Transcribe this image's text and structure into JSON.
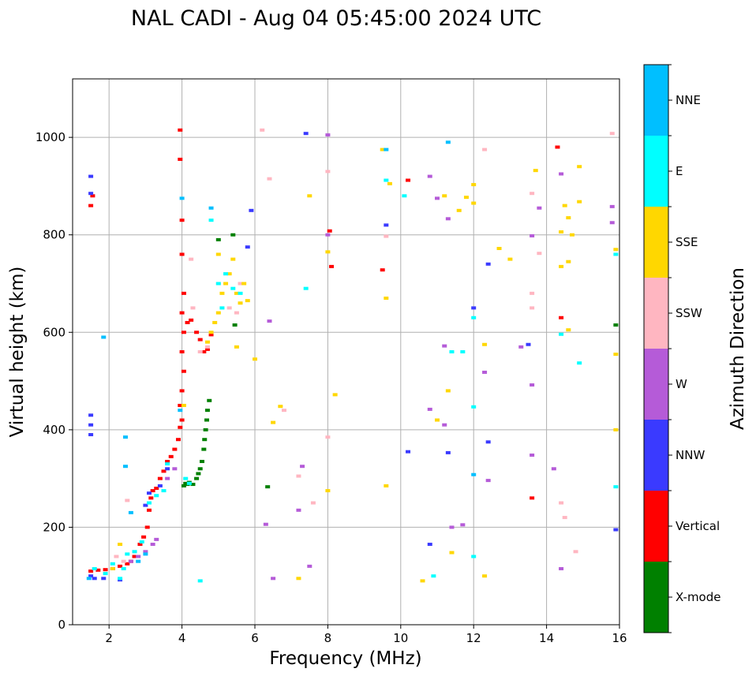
{
  "chart_data": {
    "type": "scatter",
    "title": "NAL CADI - Aug 04 05:45:00 2024 UTC",
    "xlabel": "Frequency (MHz)",
    "ylabel": "Virtual height (km)",
    "colorbar_label": "Azimuth Direction",
    "xlim": [
      1,
      16
    ],
    "ylim": [
      0,
      1120
    ],
    "xticks": [
      2,
      4,
      6,
      8,
      10,
      12,
      14,
      16
    ],
    "yticks": [
      0,
      200,
      400,
      600,
      800,
      1000
    ],
    "grid": true,
    "categories": [
      "X-mode",
      "Vertical",
      "NNW",
      "W",
      "SSW",
      "SSE",
      "E",
      "NNE"
    ],
    "category_colors": {
      "X-mode": "#008000",
      "Vertical": "#ff0000",
      "NNW": "#3a3aff",
      "W": "#b55bd8",
      "SSW": "#ffb6c1",
      "SSE": "#ffd700",
      "E": "#00ffff",
      "NNE": "#00bfff"
    },
    "series": [
      {
        "name": "X-mode",
        "points": [
          [
            4.05,
            285
          ],
          [
            4.1,
            290
          ],
          [
            4.15,
            288
          ],
          [
            4.2,
            292
          ],
          [
            4.3,
            288
          ],
          [
            4.4,
            300
          ],
          [
            4.45,
            310
          ],
          [
            4.5,
            320
          ],
          [
            4.55,
            335
          ],
          [
            4.6,
            360
          ],
          [
            4.62,
            380
          ],
          [
            4.65,
            400
          ],
          [
            4.68,
            420
          ],
          [
            4.7,
            440
          ],
          [
            4.75,
            460
          ],
          [
            5.45,
            615
          ],
          [
            5.4,
            800
          ],
          [
            5.0,
            790
          ],
          [
            6.35,
            283
          ],
          [
            15.9,
            615
          ]
        ]
      },
      {
        "name": "Vertical",
        "points": [
          [
            1.5,
            110
          ],
          [
            1.7,
            112
          ],
          [
            1.9,
            113
          ],
          [
            2.1,
            115
          ],
          [
            2.3,
            120
          ],
          [
            2.5,
            125
          ],
          [
            2.6,
            130
          ],
          [
            2.7,
            140
          ],
          [
            2.85,
            165
          ],
          [
            2.95,
            180
          ],
          [
            3.05,
            200
          ],
          [
            3.1,
            235
          ],
          [
            3.15,
            260
          ],
          [
            3.2,
            275
          ],
          [
            3.3,
            280
          ],
          [
            3.4,
            300
          ],
          [
            3.5,
            315
          ],
          [
            3.6,
            335
          ],
          [
            3.7,
            345
          ],
          [
            3.8,
            360
          ],
          [
            3.9,
            380
          ],
          [
            3.95,
            405
          ],
          [
            4.0,
            420
          ],
          [
            3.95,
            450
          ],
          [
            4.0,
            480
          ],
          [
            4.05,
            520
          ],
          [
            4.0,
            560
          ],
          [
            4.05,
            600
          ],
          [
            4.15,
            620
          ],
          [
            4.25,
            625
          ],
          [
            4.4,
            600
          ],
          [
            4.5,
            585
          ],
          [
            4.6,
            560
          ],
          [
            4.7,
            565
          ],
          [
            4.8,
            595
          ],
          [
            4.0,
            640
          ],
          [
            4.05,
            680
          ],
          [
            4.0,
            760
          ],
          [
            4.0,
            830
          ],
          [
            3.95,
            955
          ],
          [
            3.95,
            1015
          ],
          [
            1.5,
            860
          ],
          [
            1.55,
            880
          ],
          [
            14.3,
            980
          ],
          [
            13.6,
            260
          ],
          [
            14.4,
            630
          ],
          [
            8.1,
            735
          ],
          [
            10.2,
            912
          ],
          [
            8.05,
            808
          ],
          [
            9.5,
            728
          ]
        ]
      },
      {
        "name": "NNW",
        "points": [
          [
            1.5,
            100
          ],
          [
            1.6,
            95
          ],
          [
            1.85,
            95
          ],
          [
            2.3,
            92
          ],
          [
            3.0,
            245
          ],
          [
            3.1,
            270
          ],
          [
            3.4,
            285
          ],
          [
            3.6,
            320
          ],
          [
            1.5,
            390
          ],
          [
            1.5,
            410
          ],
          [
            1.5,
            430
          ],
          [
            1.5,
            885
          ],
          [
            1.5,
            920
          ],
          [
            5.8,
            775
          ],
          [
            5.9,
            850
          ],
          [
            7.4,
            1008
          ],
          [
            10.2,
            355
          ],
          [
            10.8,
            165
          ],
          [
            11.3,
            353
          ],
          [
            12.0,
            650
          ],
          [
            12.4,
            740
          ],
          [
            12.4,
            375
          ],
          [
            13.5,
            575
          ],
          [
            9.6,
            820
          ],
          [
            15.9,
            195
          ]
        ]
      },
      {
        "name": "W",
        "points": [
          [
            2.6,
            130
          ],
          [
            2.8,
            140
          ],
          [
            3.0,
            150
          ],
          [
            3.2,
            165
          ],
          [
            3.3,
            175
          ],
          [
            3.6,
            300
          ],
          [
            3.8,
            320
          ],
          [
            6.4,
            623
          ],
          [
            7.2,
            235
          ],
          [
            7.5,
            120
          ],
          [
            7.3,
            325
          ],
          [
            8.0,
            1005
          ],
          [
            8.0,
            800
          ],
          [
            10.8,
            920
          ],
          [
            11.0,
            875
          ],
          [
            11.2,
            410
          ],
          [
            11.4,
            200
          ],
          [
            11.2,
            572
          ],
          [
            11.3,
            833
          ],
          [
            11.7,
            205
          ],
          [
            12.3,
            518
          ],
          [
            12.4,
            296
          ],
          [
            13.3,
            570
          ],
          [
            13.6,
            492
          ],
          [
            13.6,
            348
          ],
          [
            13.6,
            798
          ],
          [
            13.8,
            855
          ],
          [
            14.2,
            320
          ],
          [
            14.4,
            925
          ],
          [
            14.4,
            115
          ],
          [
            15.8,
            858
          ],
          [
            15.8,
            825
          ],
          [
            6.3,
            206
          ],
          [
            6.5,
            95
          ],
          [
            10.8,
            442
          ]
        ]
      },
      {
        "name": "SSW",
        "points": [
          [
            2.2,
            140
          ],
          [
            2.4,
            130
          ],
          [
            2.5,
            255
          ],
          [
            4.25,
            750
          ],
          [
            4.3,
            650
          ],
          [
            4.5,
            560
          ],
          [
            4.7,
            570
          ],
          [
            5.0,
            700
          ],
          [
            5.2,
            720
          ],
          [
            5.3,
            650
          ],
          [
            5.5,
            640
          ],
          [
            6.2,
            1015
          ],
          [
            6.4,
            915
          ],
          [
            7.2,
            305
          ],
          [
            7.6,
            250
          ],
          [
            8.0,
            930
          ],
          [
            8.0,
            385
          ],
          [
            9.6,
            797
          ],
          [
            12.3,
            975
          ],
          [
            13.6,
            885
          ],
          [
            13.6,
            650
          ],
          [
            13.6,
            680
          ],
          [
            13.8,
            762
          ],
          [
            14.4,
            250
          ],
          [
            14.5,
            220
          ],
          [
            14.8,
            150
          ],
          [
            15.8,
            1008
          ],
          [
            6.8,
            440
          ],
          [
            5.6,
            700
          ]
        ]
      },
      {
        "name": "SSE",
        "points": [
          [
            2.1,
            115
          ],
          [
            2.3,
            165
          ],
          [
            4.05,
            450
          ],
          [
            4.7,
            580
          ],
          [
            4.8,
            600
          ],
          [
            4.9,
            620
          ],
          [
            5.0,
            640
          ],
          [
            5.0,
            760
          ],
          [
            5.1,
            680
          ],
          [
            5.2,
            700
          ],
          [
            5.3,
            720
          ],
          [
            5.4,
            750
          ],
          [
            5.5,
            680
          ],
          [
            5.6,
            660
          ],
          [
            5.7,
            700
          ],
          [
            5.5,
            570
          ],
          [
            5.8,
            665
          ],
          [
            6.0,
            545
          ],
          [
            6.5,
            415
          ],
          [
            6.7,
            448
          ],
          [
            7.2,
            95
          ],
          [
            7.5,
            880
          ],
          [
            8.0,
            765
          ],
          [
            8.0,
            275
          ],
          [
            8.2,
            472
          ],
          [
            9.5,
            975
          ],
          [
            9.6,
            285
          ],
          [
            9.6,
            670
          ],
          [
            9.7,
            905
          ],
          [
            10.6,
            90
          ],
          [
            11.0,
            420
          ],
          [
            11.2,
            880
          ],
          [
            11.3,
            480
          ],
          [
            11.4,
            148
          ],
          [
            11.6,
            850
          ],
          [
            11.8,
            877
          ],
          [
            12.0,
            903
          ],
          [
            12.0,
            865
          ],
          [
            12.3,
            575
          ],
          [
            12.3,
            100
          ],
          [
            12.7,
            772
          ],
          [
            13.0,
            750
          ],
          [
            13.7,
            932
          ],
          [
            14.4,
            735
          ],
          [
            14.4,
            806
          ],
          [
            14.5,
            860
          ],
          [
            14.6,
            835
          ],
          [
            14.6,
            605
          ],
          [
            14.6,
            745
          ],
          [
            14.7,
            800
          ],
          [
            14.9,
            868
          ],
          [
            14.9,
            940
          ],
          [
            15.9,
            555
          ],
          [
            15.9,
            400
          ],
          [
            15.9,
            770
          ]
        ]
      },
      {
        "name": "E",
        "points": [
          [
            1.6,
            115
          ],
          [
            1.9,
            105
          ],
          [
            2.1,
            125
          ],
          [
            2.4,
            115
          ],
          [
            2.5,
            145
          ],
          [
            2.7,
            150
          ],
          [
            2.9,
            170
          ],
          [
            3.1,
            250
          ],
          [
            3.3,
            265
          ],
          [
            3.5,
            275
          ],
          [
            3.6,
            330
          ],
          [
            4.1,
            300
          ],
          [
            4.2,
            290
          ],
          [
            4.5,
            90
          ],
          [
            4.8,
            830
          ],
          [
            5.0,
            700
          ],
          [
            5.2,
            720
          ],
          [
            5.4,
            690
          ],
          [
            5.6,
            680
          ],
          [
            5.1,
            650
          ],
          [
            7.4,
            690
          ],
          [
            9.6,
            912
          ],
          [
            10.1,
            880
          ],
          [
            11.4,
            560
          ],
          [
            11.7,
            560
          ],
          [
            12.0,
            447
          ],
          [
            12.0,
            630
          ],
          [
            12.0,
            140
          ],
          [
            14.4,
            596
          ],
          [
            14.9,
            537
          ],
          [
            15.9,
            283
          ],
          [
            15.9,
            760
          ],
          [
            10.9,
            100
          ],
          [
            2.3,
            95
          ]
        ]
      },
      {
        "name": "NNE",
        "points": [
          [
            2.45,
            385
          ],
          [
            2.45,
            325
          ],
          [
            2.6,
            230
          ],
          [
            1.85,
            590
          ],
          [
            1.45,
            95
          ],
          [
            3.95,
            440
          ],
          [
            4.0,
            875
          ],
          [
            4.8,
            855
          ],
          [
            9.6,
            975
          ],
          [
            11.3,
            990
          ],
          [
            12.0,
            308
          ],
          [
            2.8,
            130
          ],
          [
            3.0,
            145
          ]
        ]
      }
    ]
  }
}
